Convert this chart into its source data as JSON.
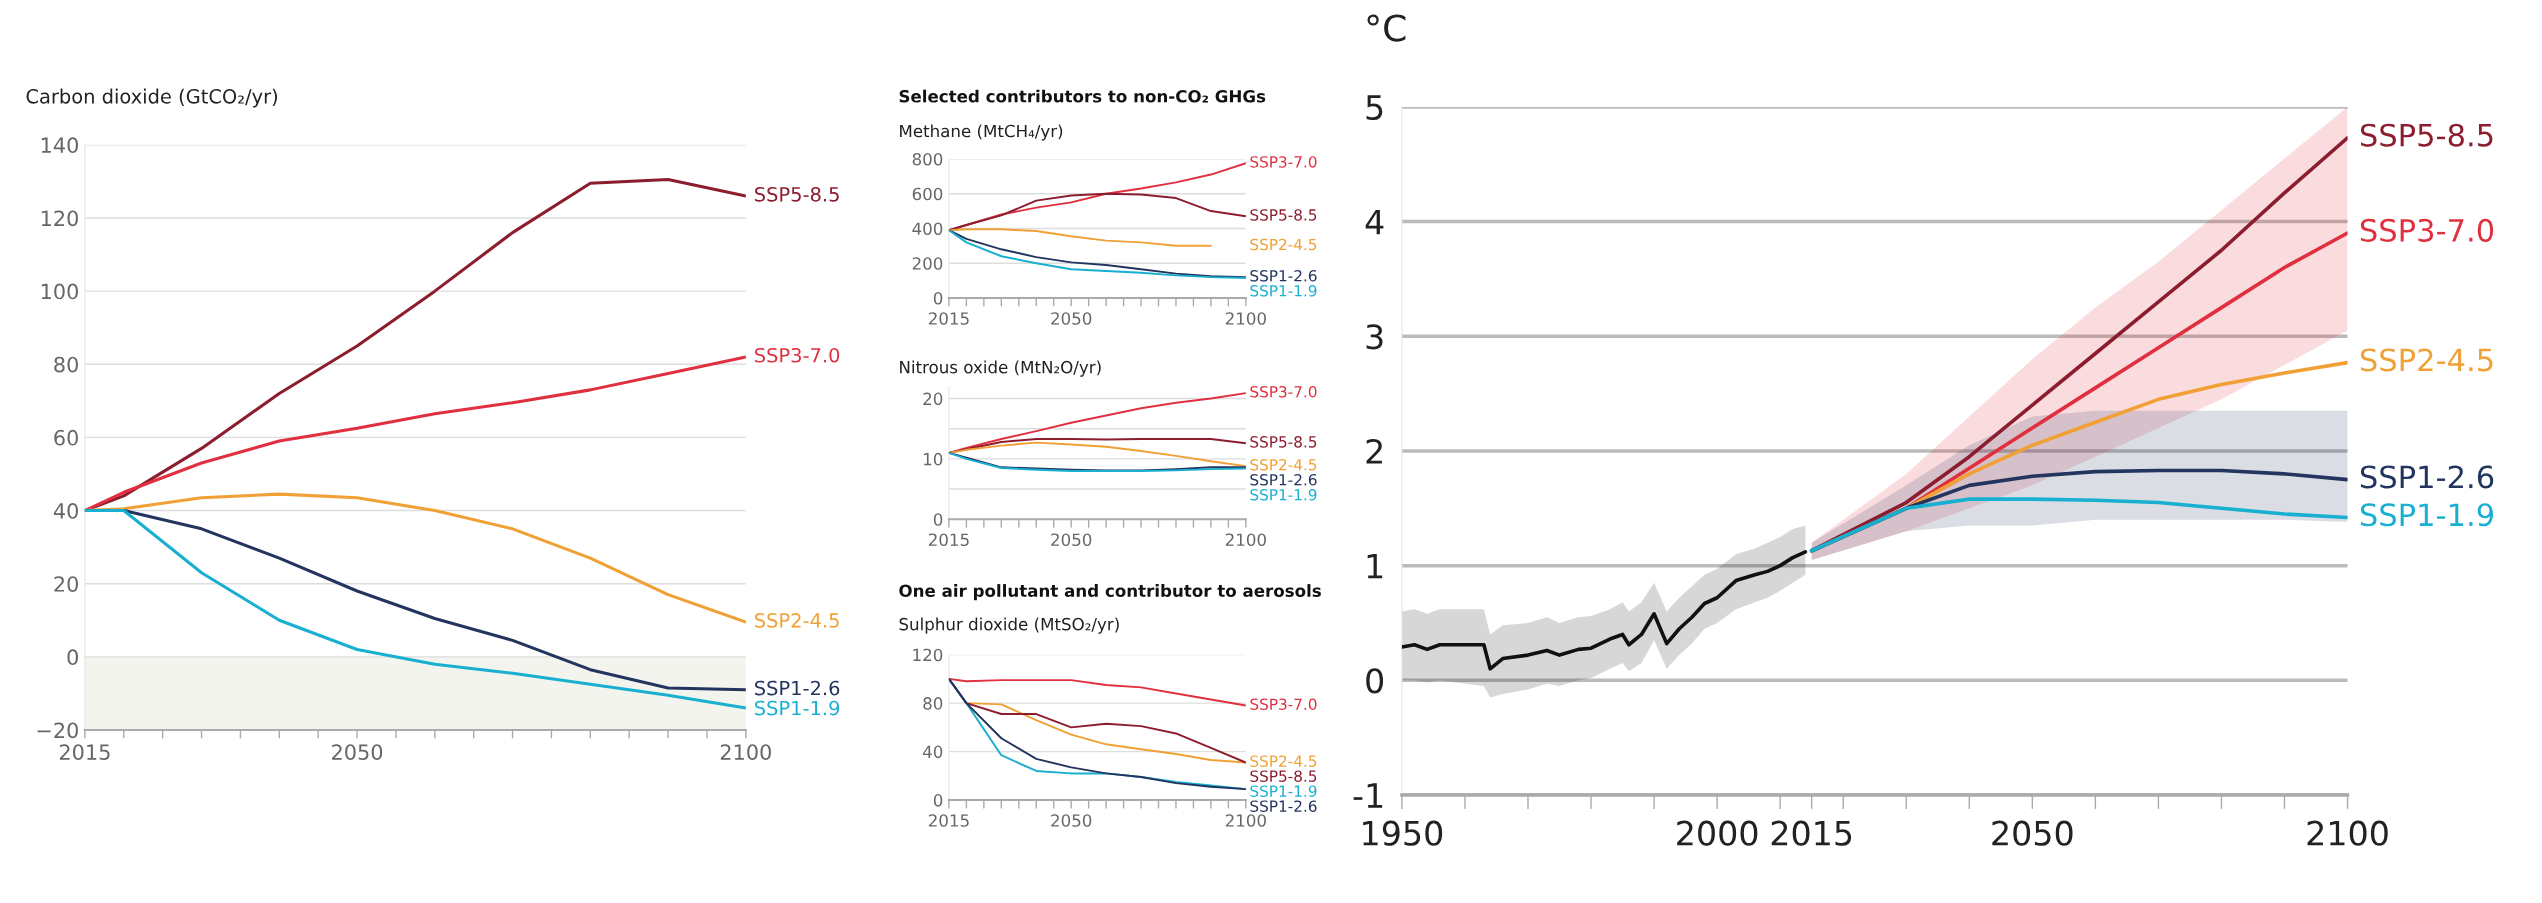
{
  "chart_data": [
    {
      "type": "line",
      "ylabel": "Carbon dioxide (GtCO₂/yr)",
      "x": [
        2015,
        2020,
        2030,
        2040,
        2050,
        2060,
        2070,
        2080,
        2090,
        2100
      ],
      "xlim": [
        2015,
        2100
      ],
      "ylim": [
        -20,
        140
      ],
      "xticks": [
        2015,
        {
          "value": 2020,
          "label": null
        },
        {
          "value": 2025,
          "label": null
        },
        {
          "value": 2030,
          "label": null
        },
        {
          "value": 2035,
          "label": null
        },
        {
          "value": 2040,
          "label": null
        },
        {
          "value": 2045,
          "label": null
        },
        2050,
        {
          "value": 2055,
          "label": null
        },
        {
          "value": 2060,
          "label": null
        },
        {
          "value": 2065,
          "label": null
        },
        {
          "value": 2070,
          "label": null
        },
        {
          "value": 2075,
          "label": null
        },
        {
          "value": 2080,
          "label": null
        },
        {
          "value": 2085,
          "label": null
        },
        {
          "value": 2090,
          "label": null
        },
        {
          "value": 2095,
          "label": null
        },
        2100
      ],
      "yticks": [
        {
          "value": -20,
          "label": "−20"
        },
        0,
        20,
        40,
        60,
        80,
        100,
        120,
        140
      ],
      "grid": "y",
      "bands": [
        {
          "axis": "y",
          "from": -20,
          "to": 0,
          "color": "#f4f4ef"
        }
      ],
      "series": [
        {
          "name": "SSP5-8.5",
          "color": "#8c1d2e",
          "values": [
            40,
            44,
            57,
            72,
            85,
            100,
            116,
            129.5,
            130.5,
            126
          ]
        },
        {
          "name": "SSP3-7.0",
          "color": "#e0303f",
          "values": [
            40,
            45,
            53,
            59,
            62.5,
            66.5,
            69.5,
            73,
            77.5,
            82
          ]
        },
        {
          "name": "SSP2-4.5",
          "color": "#f0a035",
          "values": [
            40,
            40.5,
            43.5,
            44.5,
            43.5,
            40,
            35,
            27,
            17,
            9.5
          ]
        },
        {
          "name": "SSP1-2.6",
          "color": "#23355f",
          "values": [
            40,
            40,
            35,
            27,
            18,
            10.5,
            4.5,
            -3.5,
            -8.5,
            -9
          ]
        },
        {
          "name": "SSP1-1.9",
          "color": "#19afd1",
          "values": [
            40,
            40,
            23,
            10,
            2,
            -2,
            -4.5,
            -7.5,
            -10.5,
            -14
          ]
        }
      ]
    },
    {
      "type": "line",
      "title": "Selected contributors to non-CO₂ GHGs",
      "ylabel": "Methane (MtCH₄/yr)",
      "x": [
        2015,
        2020,
        2030,
        2040,
        2050,
        2060,
        2070,
        2080,
        2090,
        2100
      ],
      "xlim": [
        2015,
        2100
      ],
      "ylim": [
        0,
        800
      ],
      "xticks": [
        2015,
        {
          "value": 2020,
          "label": null
        },
        {
          "value": 2025,
          "label": null
        },
        {
          "value": 2030,
          "label": null
        },
        {
          "value": 2035,
          "label": null
        },
        {
          "value": 2040,
          "label": null
        },
        {
          "value": 2045,
          "label": null
        },
        2050,
        {
          "value": 2055,
          "label": null
        },
        {
          "value": 2060,
          "label": null
        },
        {
          "value": 2065,
          "label": null
        },
        {
          "value": 2070,
          "label": null
        },
        {
          "value": 2075,
          "label": null
        },
        {
          "value": 2080,
          "label": null
        },
        {
          "value": 2085,
          "label": null
        },
        {
          "value": 2090,
          "label": null
        },
        {
          "value": 2095,
          "label": null
        },
        2100
      ],
      "yticks": [
        0,
        200,
        400,
        600,
        800
      ],
      "grid": "y",
      "series": [
        {
          "name": "SSP3-7.0",
          "color": "#e0303f",
          "values": [
            390,
            420,
            480,
            520,
            550,
            600,
            630,
            665,
            710,
            775
          ]
        },
        {
          "name": "SSP5-8.5",
          "color": "#8c1d2e",
          "values": [
            390,
            420,
            475,
            560,
            590,
            600,
            595,
            575,
            500,
            470
          ]
        },
        {
          "name": "SSP2-4.5",
          "color": "#f0a035",
          "values": [
            390,
            395,
            395,
            385,
            355,
            330,
            320,
            300,
            300,
            null
          ]
        },
        {
          "name": "SSP1-2.6",
          "color": "#23355f",
          "values": [
            390,
            340,
            280,
            235,
            205,
            190,
            165,
            140,
            125,
            120
          ]
        },
        {
          "name": "SSP1-1.9",
          "color": "#19afd1",
          "values": [
            390,
            320,
            240,
            200,
            165,
            155,
            145,
            130,
            120,
            115
          ]
        }
      ]
    },
    {
      "type": "line",
      "ylabel": "Nitrous oxide (MtN₂O/yr)",
      "x": [
        2015,
        2020,
        2030,
        2040,
        2050,
        2060,
        2070,
        2080,
        2090,
        2100
      ],
      "xlim": [
        2015,
        2100
      ],
      "ylim": [
        0,
        22
      ],
      "xticks": [
        2015,
        {
          "value": 2020,
          "label": null
        },
        {
          "value": 2025,
          "label": null
        },
        {
          "value": 2030,
          "label": null
        },
        {
          "value": 2035,
          "label": null
        },
        {
          "value": 2040,
          "label": null
        },
        {
          "value": 2045,
          "label": null
        },
        2050,
        {
          "value": 2055,
          "label": null
        },
        {
          "value": 2060,
          "label": null
        },
        {
          "value": 2065,
          "label": null
        },
        {
          "value": 2070,
          "label": null
        },
        {
          "value": 2075,
          "label": null
        },
        {
          "value": 2080,
          "label": null
        },
        {
          "value": 2085,
          "label": null
        },
        {
          "value": 2090,
          "label": null
        },
        {
          "value": 2095,
          "label": null
        },
        2100
      ],
      "yticks": [
        0,
        {
          "value": 5,
          "label": null
        },
        10,
        {
          "value": 15,
          "label": null
        },
        20
      ],
      "grid": "y",
      "series": [
        {
          "name": "SSP3-7.0",
          "color": "#e0303f",
          "values": [
            11,
            11.8,
            13.3,
            14.6,
            16.0,
            17.2,
            18.4,
            19.3,
            20.0,
            20.9
          ]
        },
        {
          "name": "SSP5-8.5",
          "color": "#8c1d2e",
          "values": [
            11,
            11.6,
            12.8,
            13.3,
            13.3,
            13.2,
            13.3,
            13.3,
            13.3,
            12.6
          ]
        },
        {
          "name": "SSP2-4.5",
          "color": "#f0a035",
          "values": [
            11,
            11.5,
            12.2,
            12.7,
            12.4,
            12.0,
            11.3,
            10.5,
            9.6,
            8.8
          ]
        },
        {
          "name": "SSP1-2.6",
          "color": "#23355f",
          "values": [
            11,
            10.2,
            8.6,
            8.4,
            8.2,
            8.1,
            8.1,
            8.3,
            8.6,
            8.6
          ]
        },
        {
          "name": "SSP1-1.9",
          "color": "#19afd1",
          "values": [
            11,
            10,
            8.5,
            8.2,
            8.0,
            8.0,
            8.0,
            8.1,
            8.3,
            8.4
          ]
        }
      ]
    },
    {
      "type": "line",
      "title": "One air pollutant and contributor to aerosols",
      "ylabel": "Sulphur dioxide (MtSO₂/yr)",
      "x": [
        2015,
        2020,
        2030,
        2040,
        2050,
        2060,
        2070,
        2080,
        2090,
        2100
      ],
      "xlim": [
        2015,
        2100
      ],
      "ylim": [
        0,
        120
      ],
      "xticks": [
        2015,
        {
          "value": 2020,
          "label": null
        },
        {
          "value": 2025,
          "label": null
        },
        {
          "value": 2030,
          "label": null
        },
        {
          "value": 2035,
          "label": null
        },
        {
          "value": 2040,
          "label": null
        },
        {
          "value": 2045,
          "label": null
        },
        2050,
        {
          "value": 2055,
          "label": null
        },
        {
          "value": 2060,
          "label": null
        },
        {
          "value": 2065,
          "label": null
        },
        {
          "value": 2070,
          "label": null
        },
        {
          "value": 2075,
          "label": null
        },
        {
          "value": 2080,
          "label": null
        },
        {
          "value": 2085,
          "label": null
        },
        {
          "value": 2090,
          "label": null
        },
        {
          "value": 2095,
          "label": null
        },
        2100
      ],
      "yticks": [
        0,
        40,
        80,
        120
      ],
      "grid": "y",
      "series": [
        {
          "name": "SSP3-7.0",
          "color": "#e0303f",
          "values": [
            100,
            98,
            99,
            99,
            99,
            95,
            93,
            88,
            83,
            78
          ]
        },
        {
          "name": "SSP2-4.5",
          "color": "#f0a035",
          "values": [
            100,
            80,
            79,
            66,
            54,
            46,
            42,
            38,
            33,
            31
          ]
        },
        {
          "name": "SSP5-8.5",
          "color": "#8c1d2e",
          "values": [
            100,
            80,
            71,
            71,
            60,
            63,
            61,
            55,
            43,
            31
          ]
        },
        {
          "name": "SSP1-1.9",
          "color": "#19afd1",
          "values": [
            100,
            80,
            37,
            24,
            22,
            22,
            19,
            15,
            12,
            9
          ]
        },
        {
          "name": "SSP1-2.6",
          "color": "#23355f",
          "values": [
            100,
            80,
            51,
            34,
            27,
            22,
            19,
            14,
            11,
            9
          ]
        }
      ]
    },
    {
      "type": "line",
      "ylabel": "°C",
      "xlim": [
        1950,
        2100
      ],
      "ylim": [
        -1,
        5
      ],
      "xticks": [
        1950,
        {
          "value": 1960,
          "label": null
        },
        {
          "value": 1970,
          "label": null
        },
        {
          "value": 1980,
          "label": null
        },
        {
          "value": 1990,
          "label": null
        },
        2000,
        {
          "value": 2010,
          "label": null
        },
        2015,
        {
          "value": 2020,
          "label": null
        },
        {
          "value": 2030,
          "label": null
        },
        {
          "value": 2040,
          "label": null
        },
        2050,
        {
          "value": 2060,
          "label": null
        },
        {
          "value": 2070,
          "label": null
        },
        {
          "value": 2080,
          "label": null
        },
        {
          "value": 2090,
          "label": null
        },
        2100
      ],
      "yticks": [
        -1,
        0,
        1,
        2,
        3,
        4,
        5
      ],
      "grid": "y",
      "series": [
        {
          "color": "#111111",
          "x": [
            1950,
            1952,
            1954,
            1956,
            1960,
            1963,
            1964,
            1966,
            1970,
            1973,
            1975,
            1978,
            1980,
            1983,
            1985,
            1986,
            1988,
            1990,
            1992,
            1994,
            1996,
            1998,
            2000,
            2003,
            2006,
            2008,
            2010,
            2012,
            2014
          ],
          "values": [
            0.29,
            0.31,
            0.27,
            0.31,
            0.31,
            0.31,
            0.1,
            0.19,
            0.22,
            0.26,
            0.22,
            0.27,
            0.28,
            0.36,
            0.4,
            0.31,
            0.4,
            0.58,
            0.32,
            0.45,
            0.55,
            0.67,
            0.72,
            0.87,
            0.92,
            0.95,
            1.0,
            1.07,
            1.12
          ],
          "lower": [
            0.0,
            0.0,
            -0.02,
            0.0,
            -0.03,
            -0.05,
            -0.15,
            -0.12,
            -0.08,
            -0.03,
            -0.05,
            0.0,
            0.02,
            0.1,
            0.15,
            0.08,
            0.15,
            0.35,
            0.1,
            0.22,
            0.32,
            0.45,
            0.5,
            0.62,
            0.68,
            0.72,
            0.78,
            0.85,
            0.92
          ],
          "upper": [
            0.6,
            0.62,
            0.58,
            0.62,
            0.62,
            0.62,
            0.4,
            0.48,
            0.5,
            0.55,
            0.5,
            0.55,
            0.56,
            0.62,
            0.68,
            0.6,
            0.68,
            0.85,
            0.6,
            0.72,
            0.82,
            0.92,
            0.97,
            1.1,
            1.15,
            1.2,
            1.25,
            1.32,
            1.35
          ]
        },
        {
          "name": "SSP5-8.5",
          "color": "#8c1d2e",
          "x": [
            2015,
            2030,
            2040,
            2050,
            2060,
            2070,
            2080,
            2090,
            2100
          ],
          "values": [
            1.13,
            1.55,
            1.95,
            2.4,
            2.85,
            3.3,
            3.75,
            4.25,
            4.73
          ]
        },
        {
          "name": "SSP3-7.0",
          "color": "#e0303f",
          "x": [
            2015,
            2030,
            2040,
            2050,
            2060,
            2070,
            2080,
            2090,
            2100
          ],
          "values": [
            1.13,
            1.5,
            1.85,
            2.2,
            2.55,
            2.9,
            3.25,
            3.6,
            3.9
          ],
          "lower": [
            1.05,
            1.3,
            1.5,
            1.7,
            1.95,
            2.2,
            2.45,
            2.75,
            3.05
          ],
          "upper": [
            1.2,
            1.8,
            2.3,
            2.8,
            3.25,
            3.65,
            4.1,
            4.55,
            5.0
          ]
        },
        {
          "name": "SSP2-4.5",
          "color": "#f0a035",
          "x": [
            2015,
            2030,
            2040,
            2050,
            2060,
            2070,
            2080,
            2090,
            2100
          ],
          "values": [
            1.13,
            1.5,
            1.8,
            2.05,
            2.25,
            2.45,
            2.58,
            2.68,
            2.77
          ]
        },
        {
          "name": "SSP1-2.6",
          "color": "#23355f",
          "x": [
            2015,
            2030,
            2040,
            2050,
            2060,
            2070,
            2080,
            2090,
            2100
          ],
          "values": [
            1.13,
            1.5,
            1.7,
            1.78,
            1.82,
            1.83,
            1.83,
            1.8,
            1.75
          ],
          "lower": [
            1.05,
            1.3,
            1.35,
            1.35,
            1.4,
            1.4,
            1.4,
            1.4,
            1.38
          ],
          "upper": [
            1.2,
            1.7,
            2.05,
            2.3,
            2.35,
            2.35,
            2.35,
            2.35,
            2.35
          ]
        },
        {
          "name": "SSP1-1.9",
          "color": "#19afd1",
          "x": [
            2015,
            2030,
            2040,
            2050,
            2060,
            2070,
            2080,
            2090,
            2100
          ],
          "values": [
            1.13,
            1.5,
            1.58,
            1.58,
            1.57,
            1.55,
            1.5,
            1.45,
            1.42
          ]
        }
      ]
    }
  ]
}
